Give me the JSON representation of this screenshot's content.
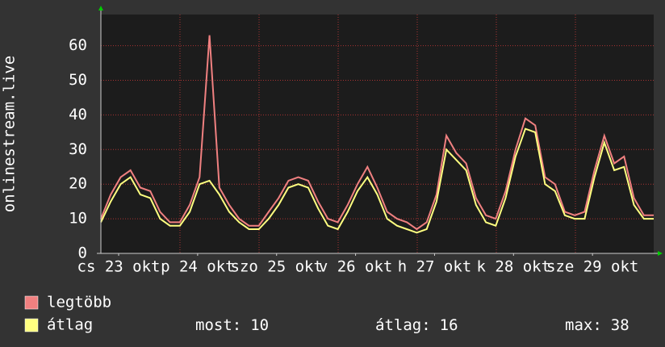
{
  "chart_data": {
    "type": "line",
    "y_label": "onlinestream.live",
    "x": [
      0,
      3,
      6,
      9,
      12,
      15,
      18,
      21,
      24,
      27,
      30,
      33,
      36,
      39,
      42,
      45,
      48,
      51,
      54,
      57,
      60,
      63,
      66,
      69,
      72,
      75,
      78,
      81,
      84,
      87,
      90,
      93,
      96,
      99,
      102,
      105,
      108,
      111,
      114,
      117,
      120,
      123,
      126,
      129,
      132,
      135,
      138,
      141,
      144,
      147,
      150,
      153,
      156,
      159,
      162,
      165,
      168
    ],
    "series": [
      {
        "name": "legtöbb",
        "color": "#f08080",
        "values": [
          10,
          17,
          22,
          24,
          19,
          18,
          12,
          9,
          9,
          14,
          22,
          63,
          19,
          14,
          10,
          8,
          8,
          12,
          16,
          21,
          22,
          21,
          15,
          10,
          9,
          14,
          20,
          25,
          19,
          12,
          10,
          9,
          7,
          9,
          17,
          34,
          29,
          26,
          16,
          11,
          10,
          18,
          30,
          39,
          37,
          22,
          20,
          12,
          11,
          12,
          24,
          34,
          26,
          28,
          16,
          11,
          11
        ]
      },
      {
        "name": "átlag",
        "color": "#ffff80",
        "values": [
          9,
          15,
          20,
          22,
          17,
          16,
          10,
          8,
          8,
          12,
          20,
          21,
          17,
          12,
          9,
          7,
          7,
          10,
          14,
          19,
          20,
          19,
          13,
          8,
          7,
          12,
          18,
          22,
          17,
          10,
          8,
          7,
          6,
          7,
          15,
          30,
          27,
          24,
          14,
          9,
          8,
          16,
          28,
          36,
          35,
          20,
          18,
          11,
          10,
          10,
          22,
          32,
          24,
          25,
          14,
          10,
          10
        ]
      }
    ],
    "xlim": [
      0,
      168
    ],
    "xticks": [
      {
        "value": 5.4,
        "label": "cs 23 okt"
      },
      {
        "value": 29.4,
        "label": "p 24 okt"
      },
      {
        "value": 53.4,
        "label": "szo 25 okt"
      },
      {
        "value": 77.4,
        "label": "v 26 okt"
      },
      {
        "value": 101.4,
        "label": "h 27 okt"
      },
      {
        "value": 125.4,
        "label": "k 28 okt"
      },
      {
        "value": 149.4,
        "label": "sze 29 okt"
      }
    ],
    "ylim": [
      0,
      69
    ],
    "yticks": [
      0,
      10,
      20,
      30,
      40,
      50,
      60
    ],
    "grid": true,
    "stats": [
      {
        "label": "most:",
        "value": 10
      },
      {
        "label": "átlag:",
        "value": 16
      },
      {
        "label": "max:",
        "value": 38
      }
    ]
  }
}
